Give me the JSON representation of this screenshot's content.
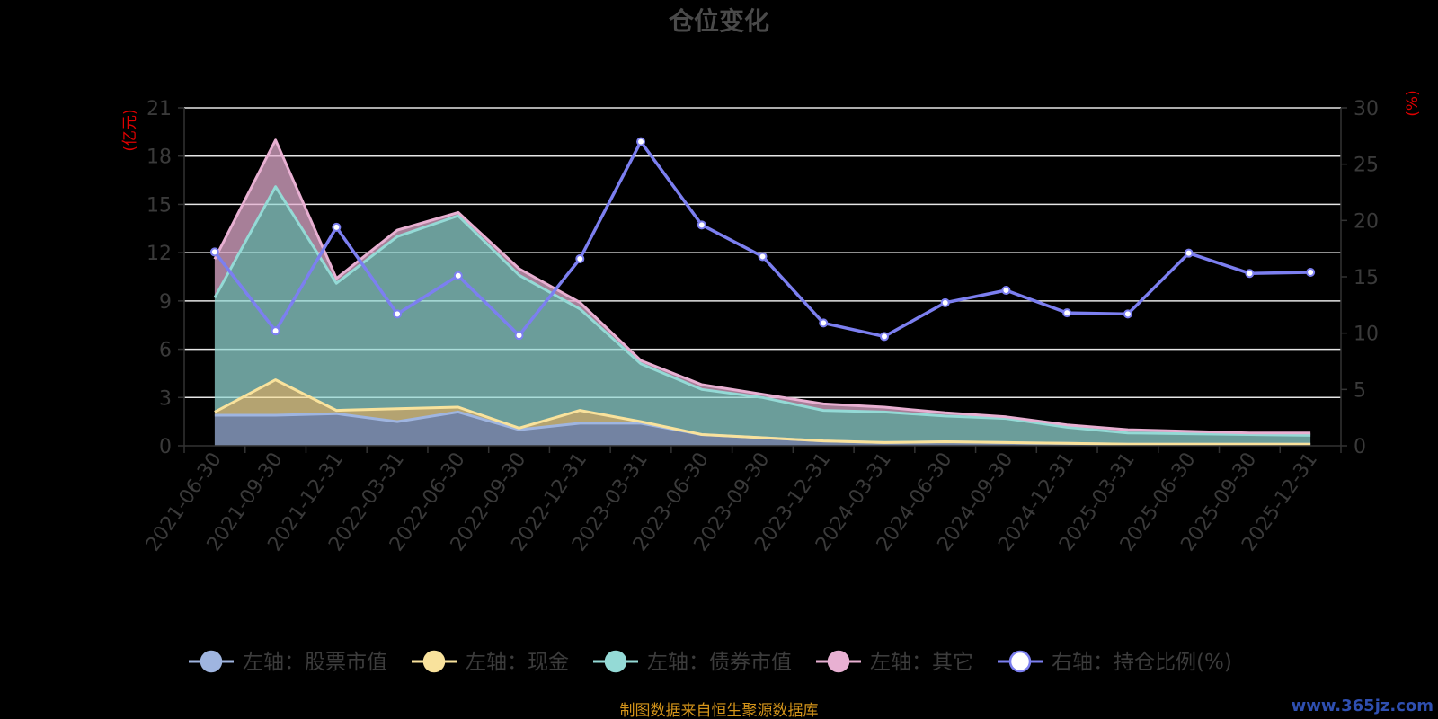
{
  "colors": {
    "background": "#000000",
    "stock": "#9fb5e0",
    "cash": "#f9e29c",
    "bond": "#94dad6",
    "other": "#e8b0d2",
    "ratio": "#7c7ff0",
    "grid": "#e6e6e6",
    "unit_label": "#e00000",
    "source": "#d4941a"
  },
  "source_note": "制图数据来自恒生聚源数据库",
  "watermark": "www.365jz.com",
  "chart_data": {
    "type": "area",
    "title": "仓位变化",
    "x": [
      "2021-06-30",
      "2021-09-30",
      "2021-12-31",
      "2022-03-31",
      "2022-06-30",
      "2022-09-30",
      "2022-12-31",
      "2023-03-31",
      "2023-06-30",
      "2023-09-30",
      "2023-12-31",
      "2024-03-31",
      "2024-06-30",
      "2024-09-30",
      "2024-12-31",
      "2025-03-31",
      "2025-06-30",
      "2025-09-30",
      "2025-12-31"
    ],
    "left_axis": {
      "unit": "(亿元)",
      "ylim": [
        0,
        21
      ],
      "ticks": [
        0,
        3,
        6,
        9,
        12,
        15,
        18,
        21
      ]
    },
    "right_axis": {
      "unit": "(%)",
      "ylim": [
        0,
        30
      ],
      "ticks": [
        0,
        5,
        10,
        15,
        20,
        25,
        30
      ]
    },
    "stacked": true,
    "grid": true,
    "legend_position": "bottom",
    "series": [
      {
        "name": "左轴：股票市值",
        "axis": "left",
        "color_key": "stock",
        "values": [
          1.9,
          1.9,
          2.0,
          1.5,
          2.1,
          1.0,
          1.4,
          1.4,
          0.7,
          0.5,
          0.3,
          0.2,
          0.25,
          0.2,
          0.15,
          0.1,
          0.1,
          0.1,
          0.1
        ]
      },
      {
        "name": "左轴：现金",
        "axis": "left",
        "color_key": "cash",
        "values": [
          0.2,
          2.2,
          0.2,
          0.8,
          0.3,
          0.1,
          0.8,
          0.1,
          0.0,
          0.0,
          0.0,
          0.0,
          0.0,
          0.0,
          0.0,
          0.0,
          0.0,
          0.0,
          0.0
        ]
      },
      {
        "name": "左轴：债券市值",
        "axis": "left",
        "color_key": "bond",
        "values": [
          7.1,
          12.0,
          7.9,
          10.7,
          11.9,
          9.5,
          6.3,
          3.6,
          2.8,
          2.5,
          1.9,
          1.9,
          1.6,
          1.5,
          1.0,
          0.7,
          0.65,
          0.6,
          0.55
        ]
      },
      {
        "name": "左轴：其它",
        "axis": "left",
        "color_key": "other",
        "values": [
          2.4,
          2.9,
          0.3,
          0.4,
          0.2,
          0.4,
          0.4,
          0.2,
          0.3,
          0.2,
          0.4,
          0.3,
          0.2,
          0.1,
          0.15,
          0.2,
          0.15,
          0.1,
          0.15
        ]
      },
      {
        "name": "右轴：持仓比例(%)",
        "axis": "right",
        "color_key": "ratio",
        "values": [
          17.2,
          10.2,
          19.4,
          11.7,
          15.1,
          9.8,
          16.6,
          27.0,
          19.6,
          16.8,
          10.9,
          9.7,
          12.7,
          13.8,
          11.8,
          11.7,
          17.1,
          15.3,
          15.4
        ]
      }
    ]
  }
}
